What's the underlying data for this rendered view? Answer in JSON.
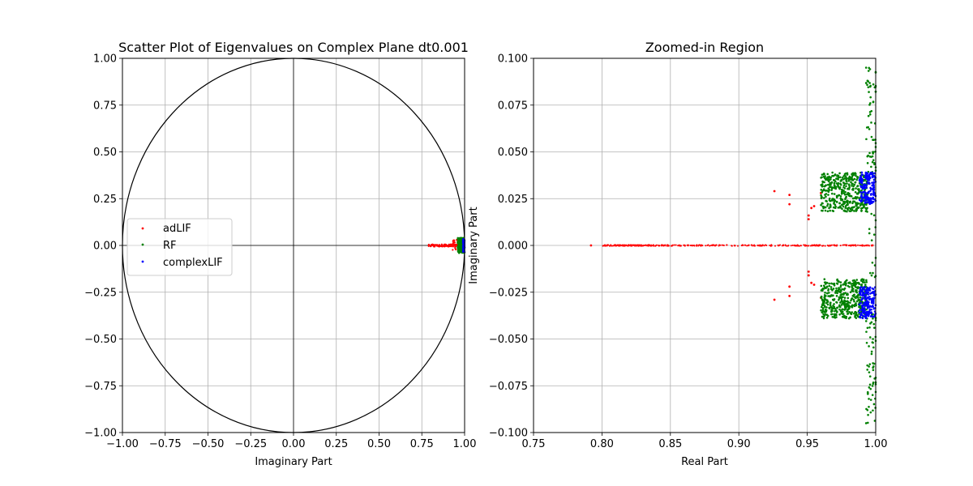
{
  "chart_data": [
    {
      "type": "scatter",
      "title": "Scatter Plot of Eigenvalues on Complex Plane dt0.001",
      "xlabel": "Imaginary Part",
      "ylabel": "",
      "xlim": [
        -1.0,
        1.0
      ],
      "ylim": [
        -1.0,
        1.0
      ],
      "xticks": [
        "−1.00",
        "−0.75",
        "−0.50",
        "−0.25",
        "0.00",
        "0.25",
        "0.50",
        "0.75",
        "1.00"
      ],
      "yticks": [
        "−1.00",
        "−0.75",
        "−0.50",
        "−0.25",
        "0.00",
        "0.25",
        "0.50",
        "0.75",
        "1.00"
      ],
      "grid": true,
      "unit_circle": true,
      "legend_placement": "center-left",
      "legend": [
        "adLIF",
        "RF",
        "complexLIF"
      ],
      "series": [
        {
          "name": "adLIF",
          "color": "#ff0000",
          "x": [
            0.8,
            0.85,
            0.9,
            0.93,
            0.95,
            0.97,
            0.99,
            0.95,
            0.95
          ],
          "y": [
            0.0,
            0.0,
            0.0,
            0.0,
            0.0,
            0.0,
            0.0,
            0.02,
            -0.02
          ]
        },
        {
          "name": "RF",
          "color": "#008000",
          "x": [
            0.965,
            0.98,
            0.99,
            0.97,
            0.985
          ],
          "y": [
            0.03,
            0.02,
            -0.03,
            -0.02,
            0.0
          ]
        },
        {
          "name": "complexLIF",
          "color": "#0000ff",
          "x": [
            0.995,
            0.998,
            0.996
          ],
          "y": [
            0.03,
            -0.03,
            0.0
          ]
        }
      ]
    },
    {
      "type": "scatter",
      "title": "Zoomed-in Region",
      "xlabel": "Real Part",
      "ylabel": "Imaginary Part",
      "xlim": [
        0.75,
        1.0
      ],
      "ylim": [
        -0.1,
        0.1
      ],
      "xticks": [
        "0.75",
        "0.80",
        "0.85",
        "0.90",
        "0.95",
        "1.00"
      ],
      "yticks": [
        "−0.100",
        "−0.075",
        "−0.050",
        "−0.025",
        "0.000",
        "0.025",
        "0.050",
        "0.075",
        "0.100"
      ],
      "grid": true,
      "series": [
        {
          "name": "adLIF",
          "color": "#ff0000",
          "x": [
            0.792,
            0.926,
            0.937,
            0.937,
            0.951,
            0.953,
            0.951,
            0.955,
            0.96,
            0.926,
            0.937,
            0.937,
            0.951,
            0.953,
            0.951,
            0.955,
            0.96
          ],
          "y": [
            0.0,
            0.029,
            0.027,
            0.022,
            0.016,
            0.02,
            0.014,
            0.021,
            0.028,
            -0.029,
            -0.027,
            -0.022,
            -0.016,
            -0.02,
            -0.014,
            -0.021,
            -0.028
          ]
        },
        {
          "name": "RF",
          "color": "#008000",
          "x": [
            0.993,
            0.994,
            0.995,
            0.996,
            0.997,
            0.998,
            0.999,
            1.0,
            0.993,
            0.994,
            0.995,
            0.996,
            0.997,
            0.998,
            0.999,
            1.0
          ],
          "y": [
            0.095,
            0.088,
            0.082,
            0.07,
            0.058,
            0.05,
            0.044,
            0.04,
            -0.095,
            -0.088,
            -0.082,
            -0.07,
            -0.058,
            -0.05,
            -0.044,
            -0.04
          ]
        },
        {
          "name": "complexLIF",
          "color": "#0000ff",
          "x": [
            0.992,
            0.994,
            0.996,
            0.998,
            0.992,
            0.994,
            0.996,
            0.998
          ],
          "y": [
            0.032,
            0.028,
            0.036,
            0.03,
            -0.032,
            -0.028,
            -0.036,
            -0.03
          ]
        }
      ]
    }
  ]
}
